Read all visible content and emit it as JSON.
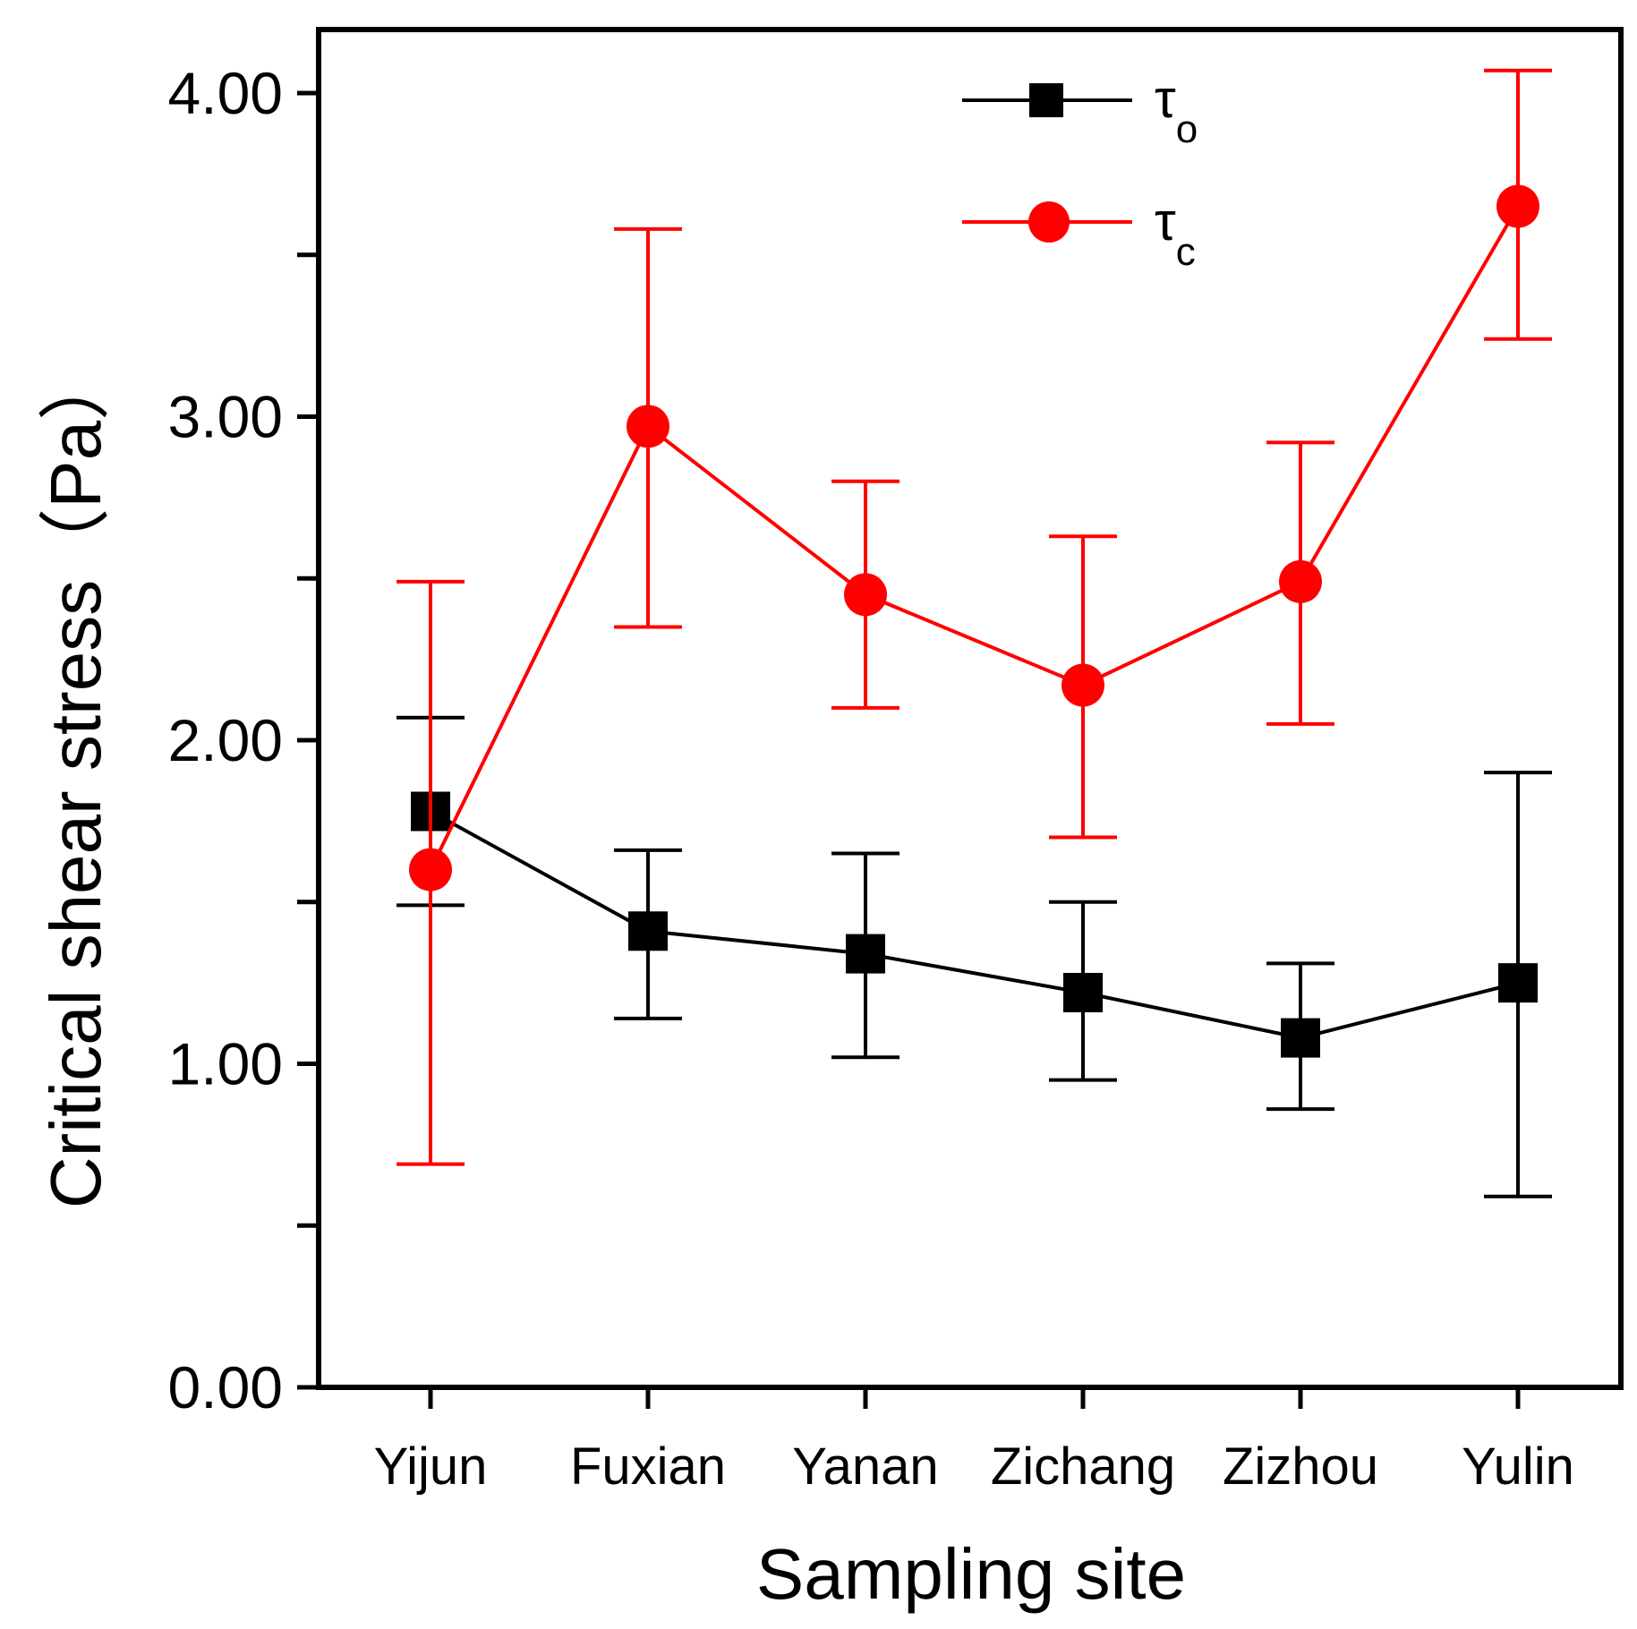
{
  "chart_data": {
    "type": "line",
    "title": "",
    "xlabel": "Sampling site",
    "ylabel": "Critical shear stress（Pa）",
    "categories": [
      "Yijun",
      "Fuxian",
      "Yanan",
      "Zichang",
      "Zizhou",
      "Yulin"
    ],
    "ylim": [
      0,
      4.2
    ],
    "yticks": [
      {
        "value": 0,
        "label": "0.00"
      },
      {
        "value": 0.5,
        "label": ""
      },
      {
        "value": 1,
        "label": "1.00"
      },
      {
        "value": 1.5,
        "label": ""
      },
      {
        "value": 2,
        "label": "2.00"
      },
      {
        "value": 2.5,
        "label": ""
      },
      {
        "value": 3,
        "label": "3.00"
      },
      {
        "value": 3.5,
        "label": ""
      },
      {
        "value": 4,
        "label": "4.00"
      }
    ],
    "grid": false,
    "legend_position": "top-right",
    "series": [
      {
        "name": "τo",
        "symbol": "τ",
        "subscript": "o",
        "color": "#000000",
        "marker": "square",
        "values": [
          1.78,
          1.41,
          1.34,
          1.22,
          1.08,
          1.25
        ],
        "error_low": [
          1.49,
          1.14,
          1.02,
          0.95,
          0.86,
          0.59
        ],
        "error_high": [
          2.07,
          1.66,
          1.65,
          1.5,
          1.31,
          1.9
        ]
      },
      {
        "name": "τc",
        "symbol": "τ",
        "subscript": "c",
        "color": "#ff0000",
        "marker": "circle",
        "values": [
          1.6,
          2.97,
          2.45,
          2.17,
          2.49,
          3.65
        ],
        "error_low": [
          0.69,
          2.35,
          2.1,
          1.7,
          2.05,
          3.24
        ],
        "error_high": [
          2.49,
          3.58,
          2.8,
          2.63,
          2.92,
          4.07
        ]
      }
    ]
  }
}
